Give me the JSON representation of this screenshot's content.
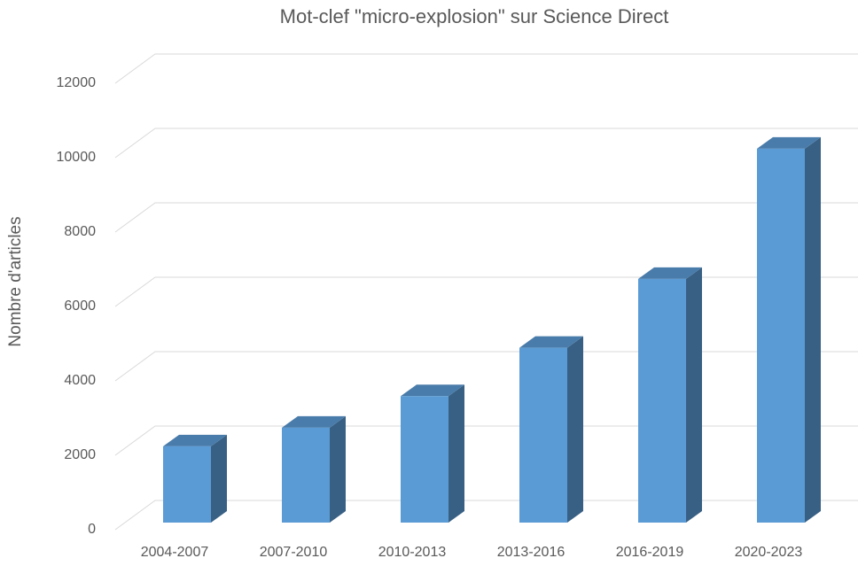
{
  "chart_data": {
    "type": "bar3d",
    "title": "Mot-clef \"micro-explosion\" sur Science Direct",
    "y_label": "Nombre d'articles",
    "categories": [
      "2004-2007",
      "2007-2010",
      "2010-2013",
      "2013-2016",
      "2016-2019",
      "2020-2023"
    ],
    "values": [
      2050,
      2550,
      3400,
      4700,
      6550,
      10050
    ],
    "color": "#5b9bd5",
    "ylim": [
      0,
      12000
    ],
    "yticks": [
      0,
      2000,
      4000,
      6000,
      8000,
      10000,
      12000
    ],
    "grid": true
  }
}
